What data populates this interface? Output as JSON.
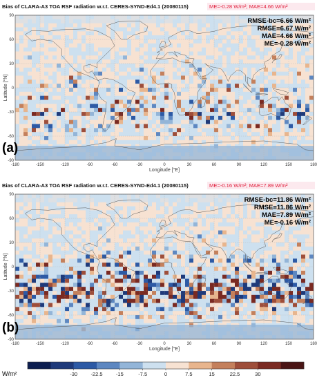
{
  "charts": [
    {
      "panel_label": "(a)",
      "title": "Bias of CLARA-A3 TOA RSF radiation w.r.t. CERES-SYND-Ed4.1 (20080115)",
      "me_mae_header": "ME=-0.28 W/m²; MAE=4.66 W/m²",
      "stats": [
        "RMSE-bc=6.66 W/m²",
        "RMSE=6.67 W/m²",
        "MAE=4.66 W/m²",
        "ME=-0.28 W/m²"
      ],
      "xlabel": "Longitude [°E]",
      "ylabel": "Latitude [°N]"
    },
    {
      "panel_label": "(b)",
      "title": "Bias of CLARA-A3 TOA RSF radiation w.r.t. CERES-SYND-Ed4.1 (20080115)",
      "me_mae_header": "ME=-0.16 W/m²; MAE=7.89 W/m²",
      "stats": [
        "RMSE-bc=11.86 W/m²",
        "RMSE=11.86 W/m²",
        "MAE=7.89 W/m²",
        "ME=-0.16 W/m²"
      ],
      "xlabel": "Longitude [°E]",
      "ylabel": "Latitude [°N]"
    }
  ],
  "axes": {
    "x_ticks": [
      "-180",
      "-150",
      "-120",
      "-90",
      "-60",
      "-30",
      "0",
      "30",
      "60",
      "90",
      "120",
      "150",
      "180"
    ],
    "y_ticks": [
      "90",
      "60",
      "30",
      "0",
      "-30",
      "-60",
      "-90"
    ]
  },
  "colorbar": {
    "unit": "W/m²",
    "tick_labels": [
      "-30",
      "-22.5",
      "-15",
      "-7.5",
      "0",
      "7.5",
      "15",
      "22.5",
      "30"
    ],
    "colors": [
      "#0d1e4f",
      "#1f3a7a",
      "#2d5aa5",
      "#5d87c1",
      "#93b5d8",
      "#cde0ef",
      "#f7e2d2",
      "#e8b58d",
      "#c4805c",
      "#9e4e3a",
      "#7a2a22",
      "#4a1515"
    ]
  },
  "chart_data": [
    {
      "type": "heatmap",
      "title": "Bias of CLARA-A3 TOA RSF radiation w.r.t. CERES-SYND-Ed4.1 (20080115)",
      "xlabel": "Longitude [°E]",
      "ylabel": "Latitude [°N]",
      "xlim": [
        -180,
        180
      ],
      "ylim": [
        -90,
        90
      ],
      "colorbar_range": [
        -30,
        30
      ],
      "unit": "W/m²",
      "ME": -0.28,
      "MAE": 4.66,
      "RMSE": 6.67,
      "RMSE_bc": 6.66
    },
    {
      "type": "heatmap",
      "title": "Bias of CLARA-A3 TOA RSF radiation w.r.t. CERES-SYND-Ed4.1 (20080115)",
      "xlabel": "Longitude [°E]",
      "ylabel": "Latitude [°N]",
      "xlim": [
        -180,
        180
      ],
      "ylim": [
        -90,
        90
      ],
      "colorbar_range": [
        -30,
        30
      ],
      "unit": "W/m²",
      "ME": -0.16,
      "MAE": 7.89,
      "RMSE": 11.86,
      "RMSE_bc": 11.86
    }
  ]
}
